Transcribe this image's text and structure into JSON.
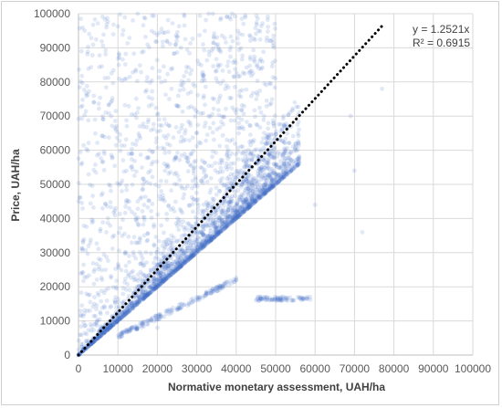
{
  "chart_data": {
    "type": "scatter",
    "xlabel": "Normative monetary assessment, UAH/ha",
    "ylabel": "Price, UAH/ha",
    "xlim": [
      0,
      100000
    ],
    "ylim": [
      0,
      100000
    ],
    "x_ticks": [
      "0",
      "10000",
      "20000",
      "30000",
      "40000",
      "50000",
      "60000",
      "70000",
      "80000",
      "90000",
      "100000"
    ],
    "y_ticks": [
      "0",
      "10000",
      "20000",
      "30000",
      "40000",
      "50000",
      "60000",
      "70000",
      "80000",
      "90000",
      "100000"
    ],
    "grid": true,
    "point_color": "#4472c4",
    "trendline": {
      "equation": "y = 1.2521x",
      "r_squared": "R² = 0.6915",
      "slope": 1.2521,
      "x_range": [
        0,
        77000
      ],
      "style": "dotted",
      "color": "#000000"
    },
    "representative_points": [
      [
        2000,
        2500
      ],
      [
        3000,
        9000
      ],
      [
        5000,
        6000
      ],
      [
        6000,
        22000
      ],
      [
        8000,
        14000
      ],
      [
        10000,
        12500
      ],
      [
        12000,
        30000
      ],
      [
        14000,
        18000
      ],
      [
        15000,
        45000
      ],
      [
        17000,
        21000
      ],
      [
        18000,
        60000
      ],
      [
        20000,
        25000
      ],
      [
        21000,
        38000
      ],
      [
        23000,
        75000
      ],
      [
        24000,
        30000
      ],
      [
        25000,
        50000
      ],
      [
        26000,
        90000
      ],
      [
        28000,
        35000
      ],
      [
        29000,
        42000
      ],
      [
        30000,
        38000
      ],
      [
        31000,
        55000
      ],
      [
        32000,
        40000
      ],
      [
        33000,
        70000
      ],
      [
        34000,
        43000
      ],
      [
        35000,
        47000
      ],
      [
        36000,
        85000
      ],
      [
        37000,
        46000
      ],
      [
        38000,
        60000
      ],
      [
        40000,
        50000
      ],
      [
        42000,
        53000
      ],
      [
        44000,
        55000
      ],
      [
        46000,
        58000
      ],
      [
        48000,
        60000
      ],
      [
        50000,
        52000
      ],
      [
        52000,
        56000
      ],
      [
        54000,
        57000
      ],
      [
        56000,
        58000
      ],
      [
        58000,
        17000
      ],
      [
        60000,
        44000
      ],
      [
        69000,
        70000
      ],
      [
        70000,
        54000
      ],
      [
        77000,
        78000
      ],
      [
        72000,
        36000
      ],
      [
        1000,
        73000
      ],
      [
        39000,
        100000
      ],
      [
        15000,
        100000
      ],
      [
        30000,
        17000
      ],
      [
        40000,
        22000
      ],
      [
        20000,
        8000
      ],
      [
        45000,
        16000
      ],
      [
        9000,
        35000
      ],
      [
        4000,
        15000
      ],
      [
        27000,
        65000
      ],
      [
        33000,
        100000
      ],
      [
        11000,
        48000
      ]
    ]
  }
}
